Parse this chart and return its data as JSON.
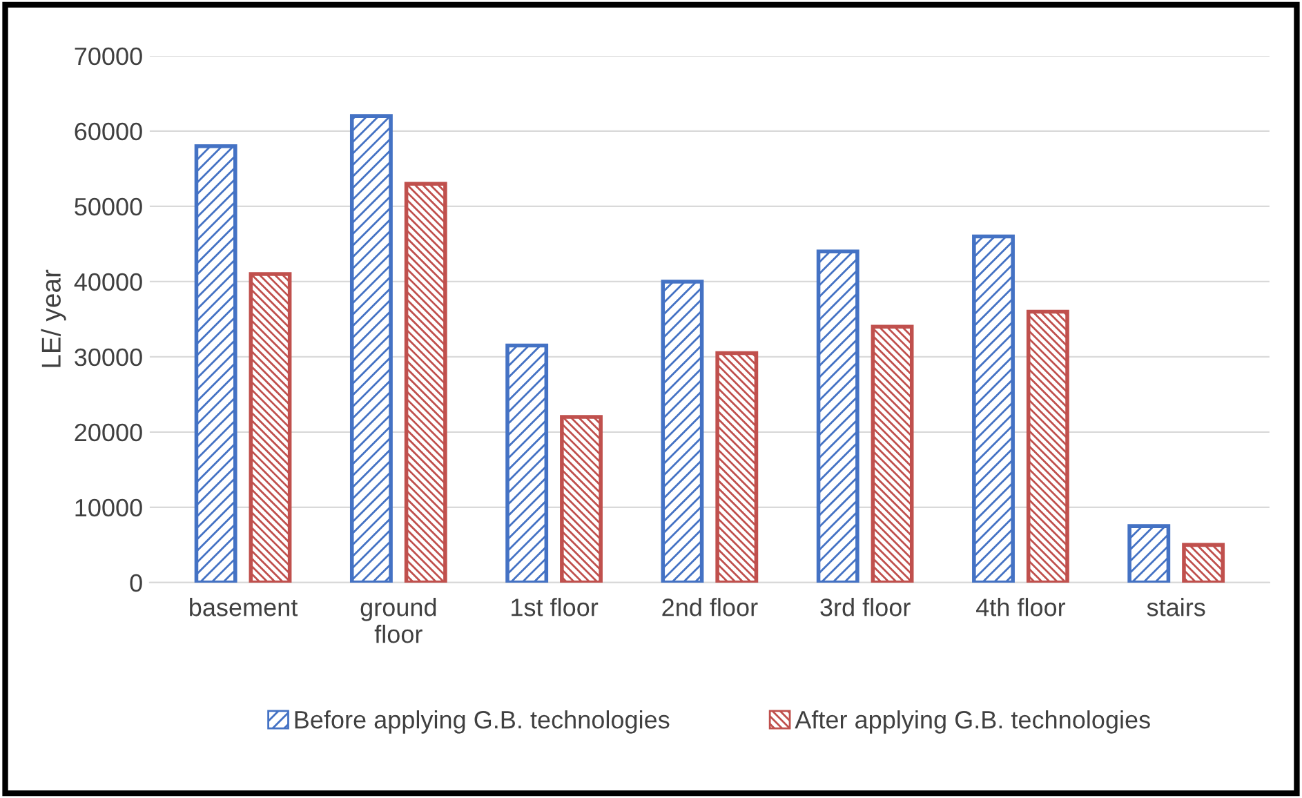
{
  "chart_data": {
    "type": "bar",
    "ylabel": "LE/ year",
    "categories": [
      "basement",
      "ground\nfloor",
      "1st floor",
      "2nd floor",
      "3rd floor",
      "4th floor",
      "stairs"
    ],
    "series": [
      {
        "name": "Before applying G.B. technologies",
        "color": "#4472c4",
        "values": [
          58000,
          62000,
          31500,
          40000,
          44000,
          46000,
          7500
        ]
      },
      {
        "name": "After applying G.B. technologies",
        "color": "#c0504d",
        "values": [
          41000,
          53000,
          22000,
          30500,
          34000,
          36000,
          5000
        ]
      }
    ],
    "ylim": [
      0,
      70000
    ],
    "yticks": [
      0,
      10000,
      20000,
      30000,
      40000,
      50000,
      60000,
      70000
    ],
    "grid": "y",
    "legend": "bottom"
  }
}
